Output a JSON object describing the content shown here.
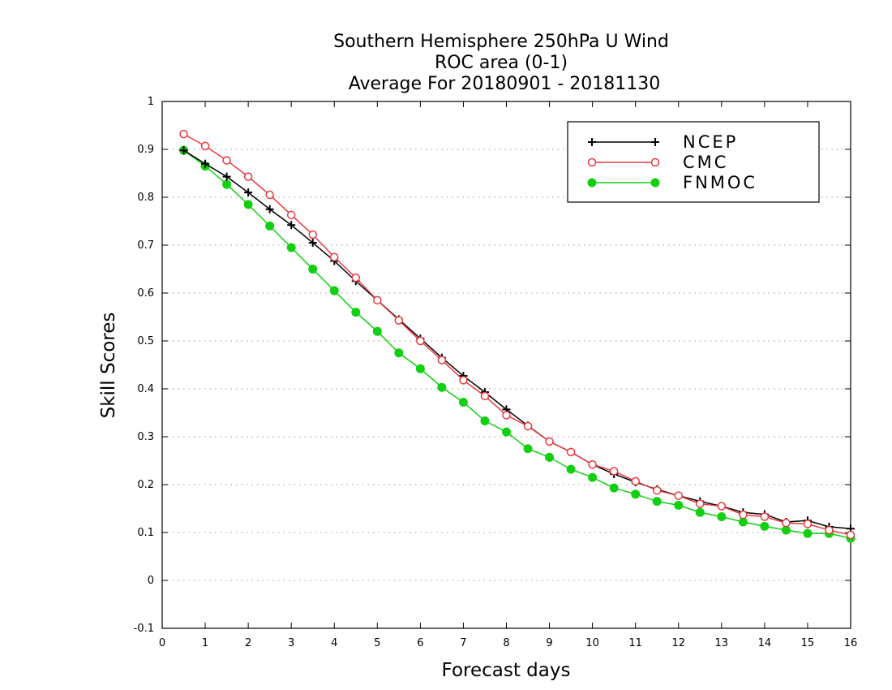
{
  "chart_data": {
    "type": "line",
    "title_lines": [
      "Southern Hemisphere 250hPa U Wind",
      "ROC area (0-1)",
      "Average For 20180901 - 20181130"
    ],
    "xlabel": "Forecast days",
    "ylabel": "Skill Scores",
    "xlim": [
      0,
      16
    ],
    "ylim": [
      -0.1,
      1
    ],
    "xticks": [
      "0",
      "1",
      "2",
      "3",
      "4",
      "5",
      "6",
      "7",
      "8",
      "9",
      "10",
      "11",
      "12",
      "13",
      "14",
      "15",
      "16"
    ],
    "yticks": [
      "-0.1",
      "0",
      "0.1",
      "0.2",
      "0.3",
      "0.4",
      "0.5",
      "0.6",
      "0.7",
      "0.8",
      "0.9",
      "1"
    ],
    "grid": "horizontal dotted",
    "legend_position": "top-right",
    "x": [
      0.5,
      1,
      1.5,
      2,
      2.5,
      3,
      3.5,
      4,
      4.5,
      5,
      5.5,
      6,
      6.5,
      7,
      7.5,
      8,
      8.5,
      9,
      9.5,
      10,
      10.5,
      11,
      11.5,
      12,
      12.5,
      13,
      13.5,
      14,
      14.5,
      15,
      15.5,
      16
    ],
    "series": [
      {
        "name": "NCEP",
        "color": "#000000",
        "marker": "plus",
        "values": [
          0.898,
          0.87,
          0.843,
          0.81,
          0.775,
          0.742,
          0.705,
          0.667,
          0.625,
          0.585,
          0.545,
          0.505,
          0.465,
          0.427,
          0.393,
          0.357,
          0.323,
          0.29,
          0.268,
          0.242,
          0.222,
          0.205,
          0.19,
          0.177,
          0.165,
          0.155,
          0.142,
          0.138,
          0.122,
          0.125,
          0.112,
          0.108
        ]
      },
      {
        "name": "CMC",
        "color": "#e8393f",
        "marker": "open-circle",
        "values": [
          0.932,
          0.907,
          0.877,
          0.843,
          0.805,
          0.763,
          0.722,
          0.675,
          0.632,
          0.585,
          0.543,
          0.5,
          0.46,
          0.418,
          0.385,
          0.345,
          0.322,
          0.29,
          0.268,
          0.242,
          0.228,
          0.207,
          0.188,
          0.177,
          0.16,
          0.155,
          0.137,
          0.133,
          0.12,
          0.118,
          0.105,
          0.095
        ]
      },
      {
        "name": "FNMOC",
        "color": "#11d011",
        "marker": "filled-circle",
        "values": [
          0.898,
          0.865,
          0.827,
          0.785,
          0.74,
          0.695,
          0.65,
          0.605,
          0.56,
          0.52,
          0.475,
          0.442,
          0.403,
          0.372,
          0.333,
          0.31,
          0.275,
          0.257,
          0.232,
          0.215,
          0.193,
          0.18,
          0.165,
          0.157,
          0.142,
          0.133,
          0.122,
          0.113,
          0.105,
          0.098,
          0.098,
          0.088
        ]
      }
    ]
  }
}
